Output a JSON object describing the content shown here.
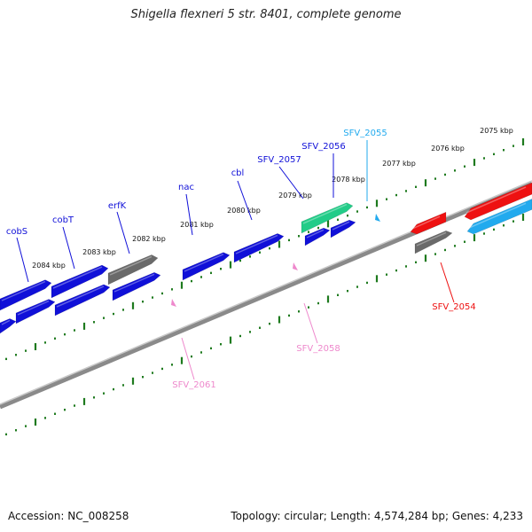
{
  "title": "Shigella flexneri 5 str. 8401, complete genome",
  "footer": {
    "accession": "Accession: NC_008258",
    "topology": "Topology: circular; Length: 4,574,284 bp; Genes: 4,233"
  },
  "colors": {
    "background": "#ffffff",
    "backbone": "#8a8a8a",
    "tick": "#1e7a1e",
    "gene_blue": "#1010d8",
    "gene_grey": "#6a6a6a",
    "gene_green": "#22cc88",
    "gene_red": "#ee1111",
    "gene_cyan": "#22aaee",
    "gene_pink": "#ee88cc"
  },
  "scale_labels": [
    "2075 kbp",
    "2076 kbp",
    "2077 kbp",
    "2078 kbp",
    "2079 kbp",
    "2080 kbp",
    "2081 kbp",
    "2082 kbp",
    "2083 kbp",
    "2084 kbp"
  ],
  "gene_labels": [
    {
      "text": "SFV_2055",
      "color": "#22aaee"
    },
    {
      "text": "SFV_2056",
      "color": "#1010d8"
    },
    {
      "text": "SFV_2057",
      "color": "#1010d8"
    },
    {
      "text": "cbl",
      "color": "#1010d8"
    },
    {
      "text": "nac",
      "color": "#1010d8"
    },
    {
      "text": "erfK",
      "color": "#1010d8"
    },
    {
      "text": "cobT",
      "color": "#1010d8"
    },
    {
      "text": "cobS",
      "color": "#1010d8"
    },
    {
      "text": "SFV_2054",
      "color": "#ee1111"
    },
    {
      "text": "SFV_2058",
      "color": "#ee88cc"
    },
    {
      "text": "SFV_2061",
      "color": "#ee88cc"
    }
  ]
}
